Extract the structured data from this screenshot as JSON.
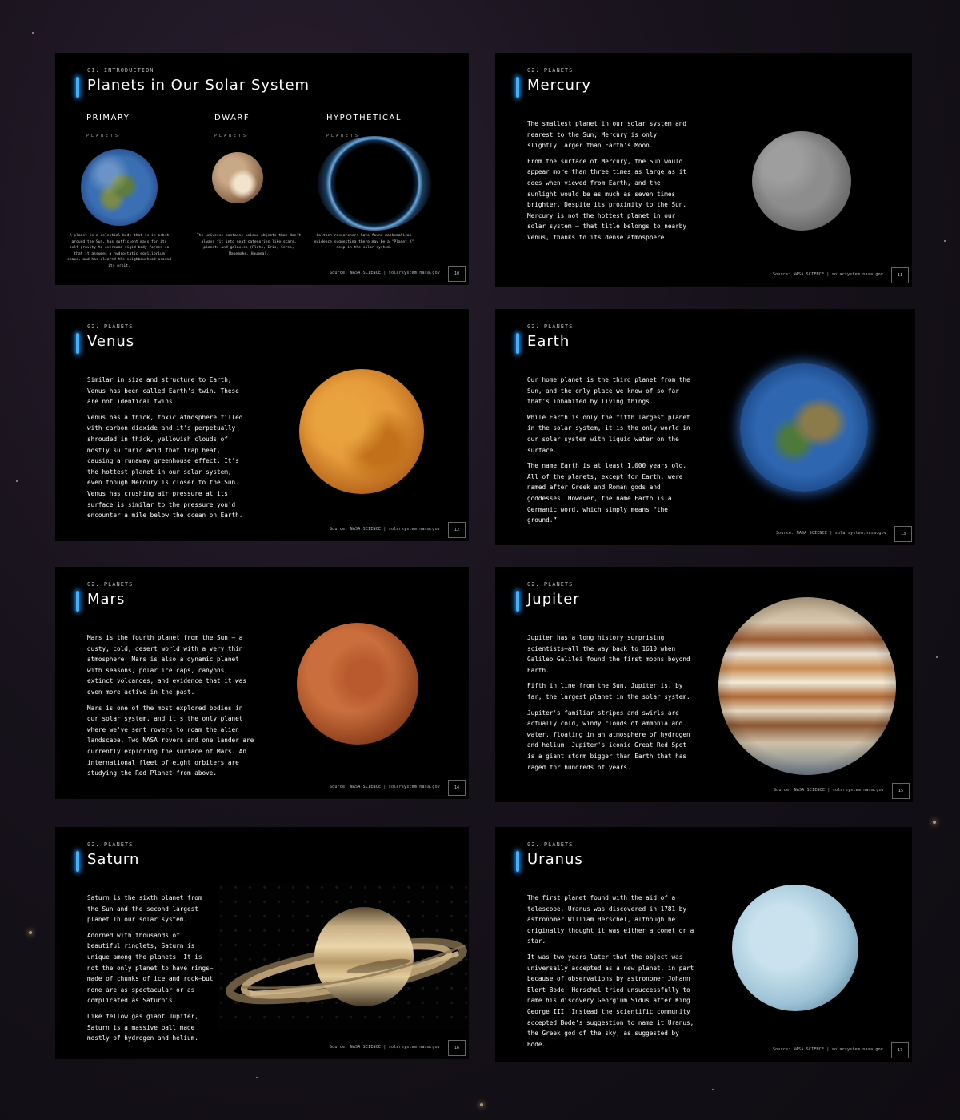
{
  "footer_source": "Source: NASA SCIENCE | solarsystem.nasa.gov",
  "intro": {
    "section": "01. INTRODUCTION",
    "title": "Planets in Our Solar System",
    "page": "10",
    "categories": [
      {
        "name": "PRIMARY",
        "sub": "PLANETS",
        "desc": "A planet is a celestial body that is in orbit around the Sun, has sufficient mass for its self-gravity to overcome rigid body forces so that it assumes a hydrostatic equilibrium shape, and has cleared the neighbourhood around its orbit."
      },
      {
        "name": "DWARF",
        "sub": "PLANETS",
        "desc": "The universe contains unique objects that don't always fit into neat categories like stars, planets and galaxies (Pluto, Eris, Ceres, Makemake, Haumea)."
      },
      {
        "name": "HYPOTHETICAL",
        "sub": "PLANETS",
        "desc": "Caltech researchers have found mathematical evidence suggesting there may be a \"Planet X\" deep in the solar system."
      }
    ]
  },
  "mercury": {
    "section": "02. PLANETS",
    "title": "Mercury",
    "page": "11",
    "paragraphs": [
      "The smallest planet in our solar system and nearest to the Sun, Mercury is only slightly larger than Earth's Moon.",
      "From the surface of Mercury, the Sun would appear more than three times as large as it does when viewed from Earth, and the sunlight would be as much as seven times brighter. Despite its proximity to the Sun, Mercury is not the hottest planet in our solar system – that title belongs to nearby Venus, thanks to its dense atmosphere."
    ]
  },
  "venus": {
    "section": "02. PLANETS",
    "title": "Venus",
    "page": "12",
    "paragraphs": [
      "Similar in size and structure to Earth, Venus has been called Earth's twin. These are not identical twins.",
      "Venus has a thick, toxic atmosphere filled with carbon dioxide and it's perpetually shrouded in thick, yellowish clouds of mostly sulfuric acid that trap heat, causing a runaway greenhouse effect. It's the hottest planet in our solar system, even though Mercury is closer to the Sun. Venus has crushing air pressure at its surface is similar to the pressure you'd encounter a mile below the ocean on Earth."
    ]
  },
  "earth": {
    "section": "02. PLANETS",
    "title": "Earth",
    "page": "13",
    "paragraphs": [
      "Our home planet is the third planet from the Sun, and the only place we know of so far that's inhabited by living things.",
      "While Earth is only the fifth largest planet in the solar system, it is the only world in our solar system with liquid water on the surface.",
      "The name Earth is at least 1,000 years old. All of the planets, except for Earth, were named after Greek and Roman gods and goddesses. However, the name Earth is a Germanic word, which simply means “the ground.”"
    ]
  },
  "mars": {
    "section": "02. PLANETS",
    "title": "Mars",
    "page": "14",
    "paragraphs": [
      "Mars is the fourth planet from the Sun – a dusty, cold, desert world with a very thin atmosphere. Mars is also a dynamic planet with seasons, polar ice caps, canyons, extinct volcanoes, and evidence that it was even more active in the past.",
      "Mars is one of the most explored bodies in our solar system, and it's the only planet where we've sent rovers to roam the alien landscape. Two NASA rovers and one lander are currently exploring the surface of Mars. An international fleet of eight orbiters are studying the Red Planet from above."
    ]
  },
  "jupiter": {
    "section": "02. PLANETS",
    "title": "Jupiter",
    "page": "15",
    "paragraphs": [
      "Jupiter has a long history surprising scientists—all the way back to 1610 when Galileo Galilei found the first moons beyond Earth.",
      "Fifth in line from the Sun, Jupiter is, by far, the largest planet in the solar system.",
      "Jupiter's familiar stripes and swirls are actually cold, windy clouds of ammonia and water, floating in an atmosphere of hydrogen and helium. Jupiter's iconic Great Red Spot is a giant storm bigger than Earth that has raged for hundreds of years."
    ]
  },
  "saturn": {
    "section": "02. PLANETS",
    "title": "Saturn",
    "page": "16",
    "paragraphs": [
      "Saturn is the sixth planet from the Sun and the second largest planet in our solar system.",
      "Adorned with thousands of beautiful ringlets, Saturn is unique among the planets. It is not the only planet to have rings—made of chunks of ice and rock—but none are as spectacular or as complicated as Saturn's.",
      "Like fellow gas giant Jupiter, Saturn is a massive ball made mostly of hydrogen and helium."
    ]
  },
  "uranus": {
    "section": "02. PLANETS",
    "title": "Uranus",
    "page": "17",
    "paragraphs": [
      "The first planet found with the aid of a telescope, Uranus was discovered in 1781 by astronomer William Herschel, although he originally thought it was either a comet or a star.",
      "It was two years later that the object was universally accepted as a new planet, in part because of observations by astronomer Johann Elert Bode. Herschel tried unsuccessfully to name his discovery Georgium Sidus after King George III. Instead the scientific community accepted Bode's suggestion to name it Uranus, the Greek god of the sky, as suggested by Bode."
    ]
  },
  "colors": {
    "accent": "#3db3ff",
    "slide_bg": "#000000",
    "page_bg": "#17121b"
  }
}
